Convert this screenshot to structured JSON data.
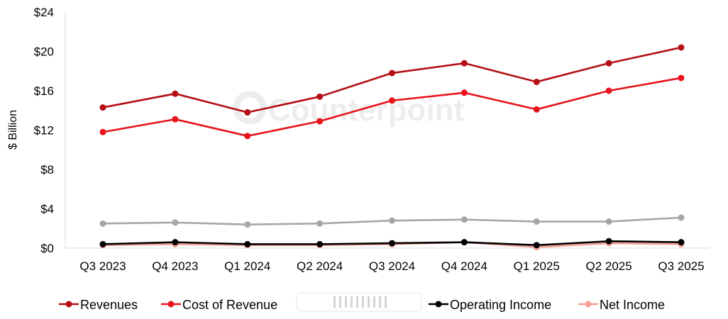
{
  "chart_data": {
    "type": "line",
    "ylabel": "$ Billion",
    "xlabel": "",
    "categories": [
      "Q3 2023",
      "Q4 2023",
      "Q1 2024",
      "Q2 2024",
      "Q3 2024",
      "Q4 2024",
      "Q1 2025",
      "Q2 2025",
      "Q3 2025"
    ],
    "ylim": [
      0,
      24
    ],
    "yticks": [
      0,
      4,
      8,
      12,
      16,
      20,
      24
    ],
    "ytick_labels": [
      "$0",
      "$4",
      "$8",
      "$12",
      "$16",
      "$20",
      "$24"
    ],
    "grid": false,
    "legend_position": "bottom",
    "series": [
      {
        "name": "Revenues",
        "color": "#b40f14",
        "values": [
          14.3,
          15.7,
          13.8,
          15.4,
          17.8,
          18.8,
          16.9,
          18.8,
          20.4
        ]
      },
      {
        "name": "Cost of Revenue",
        "color": "#e8131b",
        "values": [
          11.8,
          13.1,
          11.4,
          12.9,
          15.0,
          15.8,
          14.1,
          16.0,
          17.3
        ]
      },
      {
        "name": "",
        "color": "#a6a6a6",
        "values": [
          2.5,
          2.6,
          2.4,
          2.5,
          2.8,
          2.9,
          2.7,
          2.7,
          3.1
        ]
      },
      {
        "name": "Operating Income",
        "color": "#000000",
        "values": [
          0.4,
          0.6,
          0.4,
          0.4,
          0.5,
          0.6,
          0.3,
          0.7,
          0.6
        ]
      },
      {
        "name": "Net Income",
        "color": "#f4a097",
        "values": [
          0.3,
          0.4,
          0.3,
          0.3,
          0.4,
          0.6,
          0.1,
          0.5,
          0.4
        ]
      }
    ]
  },
  "watermark": {
    "text": "Counterpoint"
  }
}
